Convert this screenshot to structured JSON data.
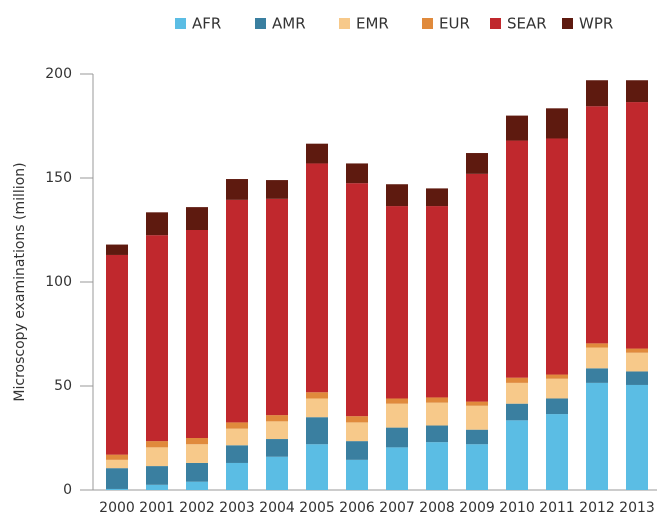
{
  "chart_data": {
    "type": "stacked_bar",
    "y_label": "Microscopy examinations (million)",
    "categories": [
      "2000",
      "2001",
      "2002",
      "2003",
      "2004",
      "2005",
      "2006",
      "2007",
      "2008",
      "2009",
      "2010",
      "2011",
      "2012",
      "2013"
    ],
    "series": [
      {
        "name": "AFR",
        "color": "#5bbde4",
        "values": [
          0.5,
          2.5,
          4,
          13,
          16,
          22,
          14.5,
          20.5,
          23,
          22,
          33.5,
          36.5,
          51.5,
          50.5
        ]
      },
      {
        "name": "AMR",
        "color": "#3a7fa0",
        "values": [
          10,
          9,
          9,
          8.5,
          8.5,
          13,
          9,
          9.5,
          8,
          7,
          8,
          7.5,
          7,
          6.5
        ]
      },
      {
        "name": "EMR",
        "color": "#f7c98a",
        "values": [
          4,
          9,
          9,
          8,
          8.5,
          9,
          9,
          11.5,
          11,
          11.5,
          10,
          9.5,
          10,
          9
        ]
      },
      {
        "name": "EUR",
        "color": "#e08a3c",
        "values": [
          2.5,
          3,
          3,
          3,
          3,
          3,
          3,
          2.5,
          2.5,
          2,
          2.5,
          2,
          2,
          2
        ]
      },
      {
        "name": "SEAR",
        "color": "#c0282d",
        "values": [
          96,
          99,
          100,
          107,
          104,
          110,
          112,
          92.5,
          92,
          109.5,
          114,
          113.5,
          114,
          118.5
        ]
      },
      {
        "name": "WPR",
        "color": "#5e1a0f",
        "values": [
          5,
          11,
          11,
          10,
          9,
          9.5,
          9.5,
          10.5,
          8.5,
          10,
          12,
          14.5,
          12.5,
          10.5
        ]
      }
    ],
    "ylim": [
      0,
      200
    ],
    "yticks": [
      0,
      50,
      100,
      150,
      200
    ],
    "grid": false,
    "legend": "top"
  }
}
